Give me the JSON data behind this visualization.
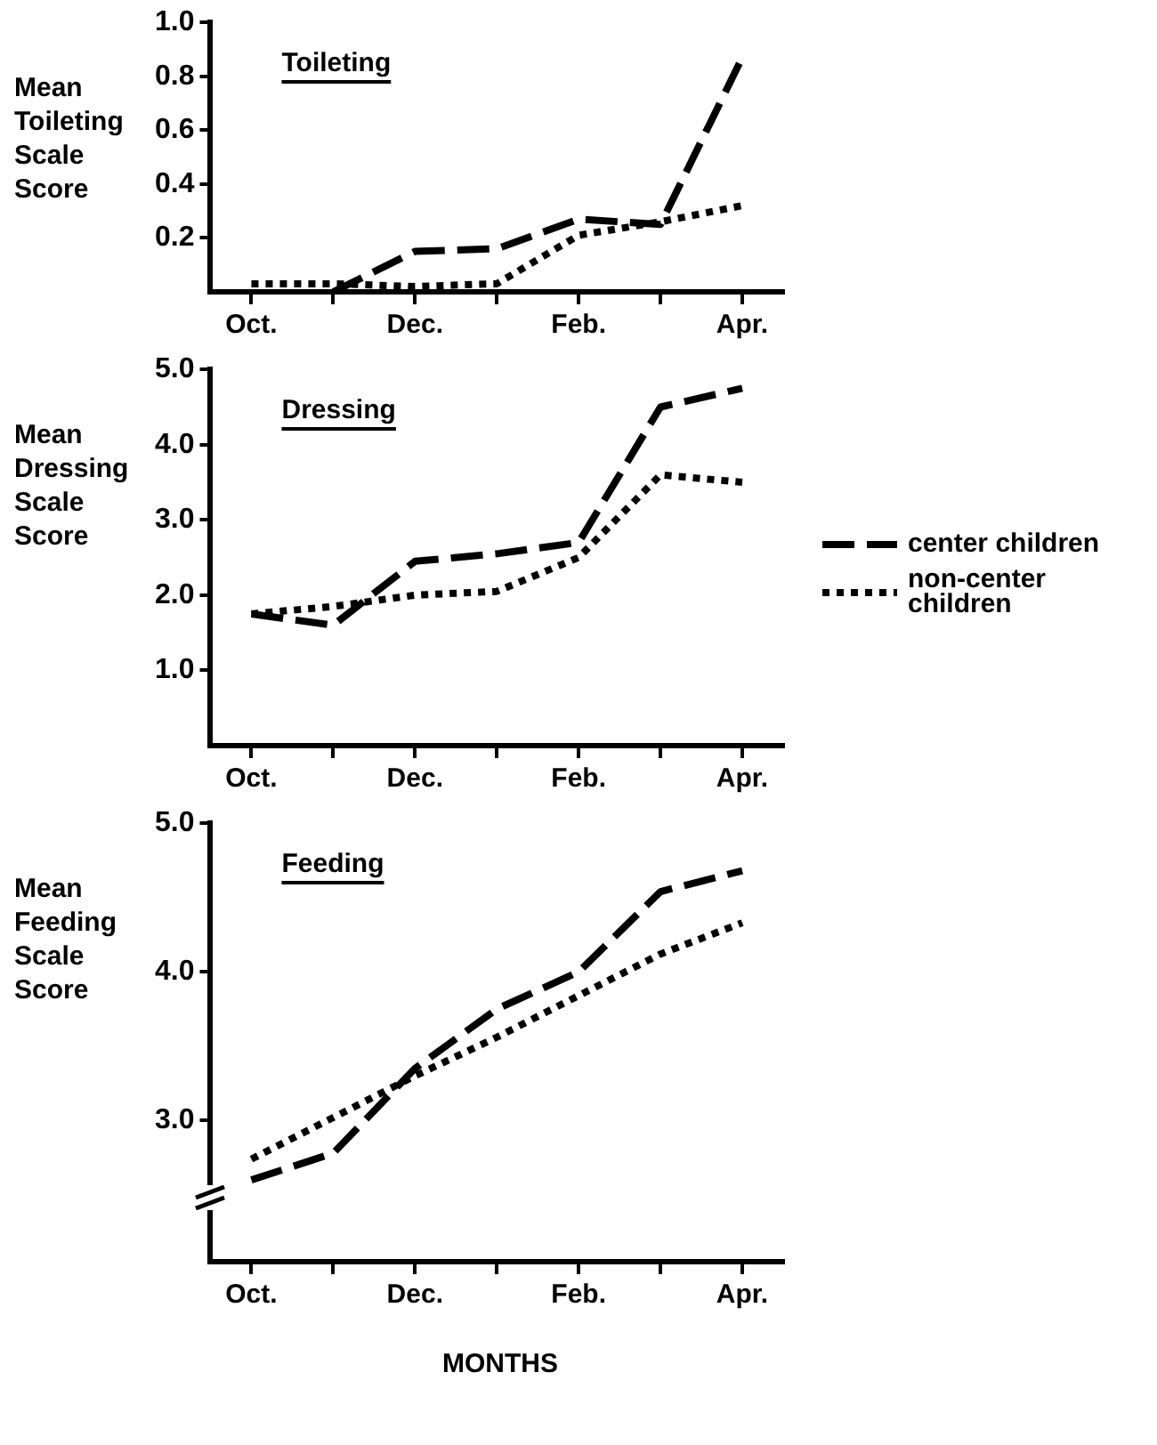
{
  "chart_data": [
    {
      "type": "line",
      "title": "Toileting",
      "ylabel": "Mean Toileting Scale Score",
      "categories": [
        "Oct.",
        null,
        "Dec.",
        null,
        "Feb.",
        null,
        "Apr."
      ],
      "ylim": [
        0,
        1
      ],
      "yticks": [
        {
          "value": 0.2,
          "label": "0.2"
        },
        {
          "value": 0.4,
          "label": "0.4"
        },
        {
          "value": 0.6,
          "label": "0.6"
        },
        {
          "value": 0.8,
          "label": "0.8"
        },
        {
          "value": 1,
          "label": "1.0"
        }
      ],
      "grid": false,
      "marker": "none",
      "series": [
        {
          "color": "#000000",
          "line_style": "dashed",
          "values": [
            null,
            0,
            0.15,
            0.16,
            0.27,
            0.25,
            0.87
          ]
        },
        {
          "color": "#000000",
          "line_style": "dotted",
          "values": [
            0.03,
            0.03,
            0.02,
            0.03,
            0.21,
            0.26,
            0.32
          ]
        }
      ]
    },
    {
      "type": "line",
      "title": "Dressing",
      "ylabel": "Mean Dressing Scale Score",
      "categories": [
        "Oct.",
        null,
        "Dec.",
        null,
        "Feb.",
        null,
        "Apr."
      ],
      "ylim": [
        0,
        5
      ],
      "yticks": [
        {
          "value": 1,
          "label": "1.0"
        },
        {
          "value": 2,
          "label": "2.0"
        },
        {
          "value": 3,
          "label": "3.0"
        },
        {
          "value": 4,
          "label": "4.0"
        },
        {
          "value": 5,
          "label": "5.0"
        }
      ],
      "grid": false,
      "marker": "none",
      "legend": "right",
      "series": [
        {
          "name": "center children",
          "color": "#000000",
          "line_style": "dashed",
          "values": [
            1.75,
            1.6,
            2.45,
            2.55,
            2.7,
            4.5,
            4.75
          ]
        },
        {
          "name": "non-center children",
          "color": "#000000",
          "line_style": "dotted",
          "values": [
            1.75,
            1.85,
            2.0,
            2.05,
            2.5,
            3.6,
            3.5
          ]
        }
      ]
    },
    {
      "type": "line",
      "title": "Feeding",
      "ylabel": "Mean Feeding Scale Score",
      "xlabel": "MONTHS",
      "categories": [
        "Oct.",
        null,
        "Dec.",
        null,
        "Feb.",
        null,
        "Apr."
      ],
      "ylim": [
        2.05,
        5
      ],
      "yticks": [
        {
          "value": 3,
          "label": "3.0"
        },
        {
          "value": 4,
          "label": "4.0"
        },
        {
          "value": 5,
          "label": "5.0"
        }
      ],
      "grid": false,
      "marker": "none",
      "series": [
        {
          "color": "#000000",
          "line_style": "dashed",
          "values": [
            2.6,
            2.78,
            3.35,
            3.75,
            4.0,
            4.54,
            4.68
          ]
        },
        {
          "color": "#000000",
          "line_style": "dotted",
          "values": [
            2.74,
            3.02,
            3.3,
            3.56,
            3.84,
            4.12,
            4.33
          ]
        }
      ]
    }
  ]
}
